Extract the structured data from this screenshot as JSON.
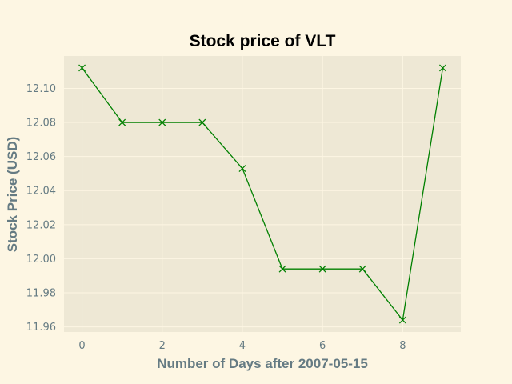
{
  "chart_data": {
    "type": "line",
    "title": "Stock price of VLT",
    "xlabel": "Number of Days after 2007-05-15",
    "ylabel": "Stock Price (USD)",
    "x": [
      0,
      1,
      2,
      3,
      4,
      5,
      6,
      7,
      8,
      9
    ],
    "series": [
      {
        "values": [
          12.112,
          12.08,
          12.08,
          12.08,
          12.053,
          11.994,
          11.994,
          11.994,
          11.964,
          12.112
        ],
        "color": "#008000",
        "marker": "x"
      }
    ],
    "xticks": [
      0,
      2,
      4,
      6,
      8
    ],
    "xtick_labels": [
      "0",
      "2",
      "4",
      "6",
      "8"
    ],
    "yticks": [
      11.96,
      11.98,
      12.0,
      12.02,
      12.04,
      12.06,
      12.08,
      12.1
    ],
    "ytick_labels": [
      "11.96",
      "11.98",
      "12.00",
      "12.02",
      "12.04",
      "12.06",
      "12.08",
      "12.10"
    ],
    "xlim": [
      -0.45,
      9.45
    ],
    "ylim": [
      11.957,
      12.119
    ],
    "grid": true,
    "colors": {
      "figure_background": "#fdf6e3",
      "plot_background": "#eee8d5",
      "grid": "#fdf6e3",
      "text": "#657b83"
    }
  }
}
